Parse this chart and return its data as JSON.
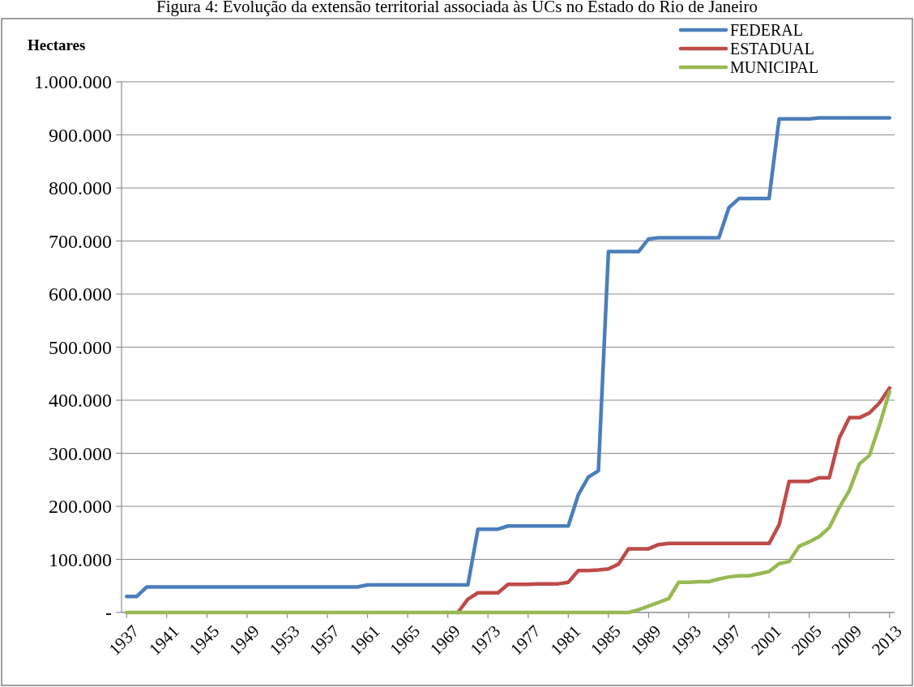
{
  "chart_data": {
    "type": "line",
    "title": "Figura 4: Evolução da extensão territorial associada às UCs no Estado do Rio de Janeiro",
    "ylabel": "Hectares",
    "x": [
      1937,
      1938,
      1939,
      1940,
      1941,
      1942,
      1943,
      1944,
      1945,
      1946,
      1947,
      1948,
      1949,
      1950,
      1951,
      1952,
      1953,
      1954,
      1955,
      1956,
      1957,
      1958,
      1959,
      1960,
      1961,
      1962,
      1963,
      1964,
      1965,
      1966,
      1967,
      1968,
      1969,
      1970,
      1971,
      1972,
      1973,
      1974,
      1975,
      1976,
      1977,
      1978,
      1979,
      1980,
      1981,
      1982,
      1983,
      1984,
      1985,
      1986,
      1987,
      1988,
      1989,
      1990,
      1991,
      1992,
      1993,
      1994,
      1995,
      1996,
      1997,
      1998,
      1999,
      2000,
      2001,
      2002,
      2003,
      2004,
      2005,
      2006,
      2007,
      2008,
      2009,
      2010,
      2011,
      2012,
      2013
    ],
    "series": [
      {
        "name": "FEDERAL",
        "color": "#4a7ebb",
        "values": [
          30000,
          30000,
          48000,
          48000,
          48000,
          48000,
          48000,
          48000,
          48000,
          48000,
          48000,
          48000,
          48000,
          48000,
          48000,
          48000,
          48000,
          48000,
          48000,
          48000,
          48000,
          48000,
          48000,
          48000,
          52000,
          52000,
          52000,
          52000,
          52000,
          52000,
          52000,
          52000,
          52000,
          52000,
          52000,
          157000,
          157000,
          157000,
          163000,
          163000,
          163000,
          163000,
          163000,
          163000,
          163000,
          222000,
          255000,
          267000,
          680000,
          680000,
          680000,
          680000,
          704000,
          706000,
          706000,
          706000,
          706000,
          706000,
          706000,
          706000,
          763000,
          780000,
          780000,
          780000,
          780000,
          930000,
          930000,
          930000,
          930000,
          932000,
          932000,
          932000,
          932000,
          932000,
          932000,
          932000,
          932000
        ]
      },
      {
        "name": "ESTADUAL",
        "color": "#be4b48",
        "values": [
          null,
          null,
          null,
          null,
          null,
          null,
          null,
          null,
          null,
          null,
          null,
          null,
          null,
          null,
          null,
          null,
          null,
          null,
          null,
          null,
          null,
          null,
          null,
          null,
          null,
          null,
          null,
          null,
          null,
          null,
          null,
          null,
          null,
          0,
          25000,
          37000,
          37000,
          37000,
          53000,
          53000,
          53000,
          54000,
          54000,
          54000,
          57000,
          79000,
          79000,
          80000,
          82000,
          91000,
          120000,
          120000,
          120000,
          128000,
          130000,
          130000,
          130000,
          130000,
          130000,
          130000,
          130000,
          130000,
          130000,
          130000,
          130000,
          165000,
          247000,
          247000,
          247000,
          254000,
          254000,
          329000,
          367000,
          367000,
          376000,
          395000,
          423000
        ]
      },
      {
        "name": "MUNICIPAL",
        "color": "#98b954",
        "values": [
          0,
          0,
          0,
          0,
          0,
          0,
          0,
          0,
          0,
          0,
          0,
          0,
          0,
          0,
          0,
          0,
          0,
          0,
          0,
          0,
          0,
          0,
          0,
          0,
          0,
          0,
          0,
          0,
          0,
          0,
          0,
          0,
          0,
          0,
          0,
          0,
          0,
          0,
          0,
          0,
          0,
          0,
          0,
          0,
          0,
          0,
          0,
          0,
          0,
          0,
          0,
          5000,
          12000,
          19000,
          26000,
          57000,
          57000,
          58000,
          58000,
          63000,
          67000,
          69000,
          69000,
          73000,
          77000,
          92000,
          96000,
          125000,
          133000,
          143000,
          160000,
          198000,
          230000,
          280000,
          296000,
          353000,
          416000
        ]
      }
    ],
    "xlim": [
      1936.5,
      2013.5
    ],
    "xticks": [
      1937,
      1941,
      1945,
      1949,
      1953,
      1957,
      1961,
      1965,
      1969,
      1973,
      1977,
      1981,
      1985,
      1989,
      1993,
      1997,
      2001,
      2005,
      2009,
      2013
    ],
    "ylim": [
      0,
      1000000
    ],
    "yticks": [
      {
        "value": 0,
        "label": "-"
      },
      {
        "value": 100000,
        "label": "100.000"
      },
      {
        "value": 200000,
        "label": "200.000"
      },
      {
        "value": 300000,
        "label": "300.000"
      },
      {
        "value": 400000,
        "label": "400.000"
      },
      {
        "value": 500000,
        "label": "500.000"
      },
      {
        "value": 600000,
        "label": "600.000"
      },
      {
        "value": 700000,
        "label": "700.000"
      },
      {
        "value": 800000,
        "label": "800.000"
      },
      {
        "value": 900000,
        "label": "900.000"
      },
      {
        "value": 1000000,
        "label": "1.000.000"
      }
    ],
    "grid": "y",
    "legend": "top right",
    "marker": "none",
    "line_style": "solid"
  }
}
